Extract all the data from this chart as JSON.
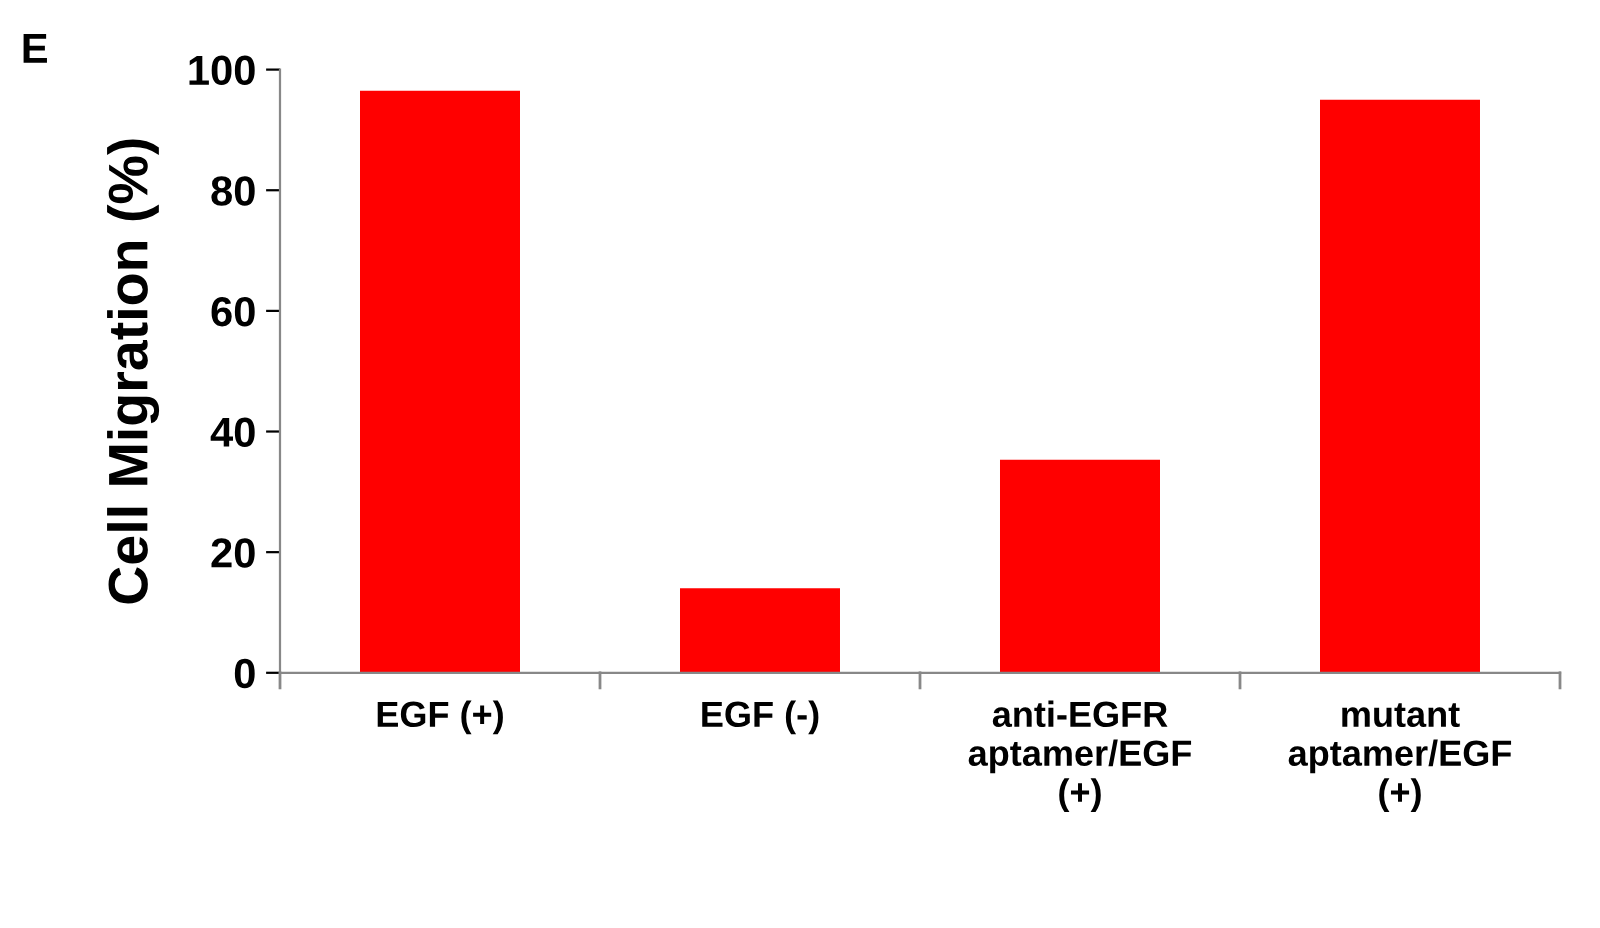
{
  "chart_data": {
    "type": "bar",
    "ylabel": "Cell Migration (%)",
    "categories": [
      "EGF (+)",
      "EGF (-)",
      "anti-EGFR\naptamer/EGF\n(+)",
      "mutant\naptamer/EGF\n(+)"
    ],
    "values": [
      96.5,
      14,
      35.3,
      95
    ],
    "color": "#ff0000",
    "ylim": [
      0,
      100
    ],
    "yticks": [
      0,
      20,
      40,
      60,
      80,
      100
    ],
    "grid": false,
    "annotations": [
      "E"
    ]
  }
}
